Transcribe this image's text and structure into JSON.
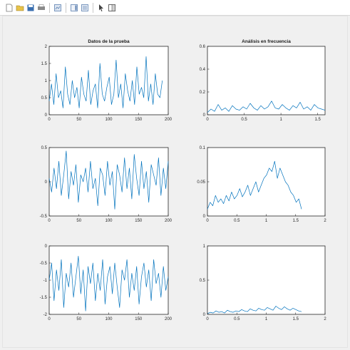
{
  "toolbar": {
    "buttons": [
      {
        "icon": "new-figure-icon",
        "color": "#ffffff"
      },
      {
        "icon": "open-file-icon",
        "color": "#e8c34a"
      },
      {
        "icon": "save-icon",
        "color": "#3a6fb0"
      },
      {
        "icon": "print-icon",
        "color": "#7a7a7a"
      },
      {
        "icon": "link-icon",
        "color": "#5a7fb0"
      },
      {
        "icon": "insert-colorbar-icon",
        "color": "#5a7fb0"
      },
      {
        "icon": "insert-legend-icon",
        "color": "#5a7fb0"
      },
      {
        "icon": "pointer-icon",
        "color": "#404040"
      },
      {
        "icon": "plot-tools-icon",
        "color": "#404040"
      }
    ]
  },
  "figure": {
    "trace_color": "#0072bd",
    "background": "#f0f0f0"
  },
  "chart_data": [
    {
      "type": "line",
      "title": "Datos de la prueba",
      "xlim": [
        0,
        200
      ],
      "ylim": [
        0,
        2
      ],
      "xticks": [
        0,
        50,
        100,
        150,
        200
      ],
      "yticks": [
        0,
        0.5,
        1,
        1.5,
        2
      ],
      "xtick_labels": [
        "0",
        "50",
        "100",
        "150",
        "200"
      ],
      "ytick_labels": [
        "0",
        "0.5",
        "1",
        "1.5",
        "2"
      ],
      "x_end": 190,
      "y": [
        0.4,
        0.9,
        0.3,
        1.2,
        0.5,
        0.7,
        0.2,
        1.4,
        0.6,
        0.3,
        1.0,
        0.5,
        0.8,
        0.2,
        1.1,
        0.6,
        0.4,
        1.3,
        0.3,
        0.7,
        0.9,
        0.2,
        1.5,
        0.6,
        0.4,
        0.8,
        1.1,
        0.3,
        0.6,
        1.6,
        0.5,
        0.9,
        0.2,
        1.2,
        0.7,
        0.4,
        1.0,
        0.3,
        1.4,
        0.6,
        0.8,
        0.5,
        1.7,
        0.4,
        0.9,
        0.3,
        1.2,
        0.6,
        0.5,
        1.0
      ]
    },
    {
      "type": "line",
      "title": "Análisis en frecuencia",
      "xlim": [
        0,
        1.6
      ],
      "ylim": [
        0,
        0.6
      ],
      "xticks": [
        0,
        0.5,
        1,
        1.5
      ],
      "yticks": [
        0,
        0.2,
        0.4,
        0.6
      ],
      "xtick_labels": [
        "0",
        "0.5",
        "1",
        "1.5"
      ],
      "ytick_labels": [
        "0",
        "0.2",
        "0.4",
        "0.6"
      ],
      "x_end": 1.6,
      "y": [
        0.02,
        0.05,
        0.03,
        0.09,
        0.04,
        0.06,
        0.03,
        0.08,
        0.05,
        0.04,
        0.07,
        0.05,
        0.1,
        0.06,
        0.04,
        0.08,
        0.05,
        0.07,
        0.12,
        0.06,
        0.05,
        0.09,
        0.06,
        0.04,
        0.08,
        0.06,
        0.11,
        0.05,
        0.07,
        0.04,
        0.09,
        0.06,
        0.05,
        0.04
      ]
    },
    {
      "type": "line",
      "title": "",
      "xlim": [
        0,
        200
      ],
      "ylim": [
        -0.5,
        0.5
      ],
      "xticks": [
        0,
        50,
        100,
        150,
        200
      ],
      "yticks": [
        -0.5,
        0,
        0.5
      ],
      "xtick_labels": [
        "0",
        "50",
        "100",
        "150",
        "200"
      ],
      "ytick_labels": [
        "-0.5",
        "0",
        "0.5"
      ],
      "x_end": 200,
      "y": [
        0.05,
        -0.15,
        0.2,
        -0.1,
        0.3,
        -0.2,
        0.1,
        0.45,
        -0.25,
        0.15,
        -0.05,
        0.25,
        -0.3,
        0.1,
        0.0,
        0.2,
        -0.15,
        0.3,
        -0.1,
        0.05,
        -0.35,
        0.2,
        0.1,
        -0.2,
        0.3,
        -0.05,
        0.15,
        -0.4,
        0.25,
        0.1,
        -0.15,
        0.35,
        -0.1,
        0.2,
        -0.25,
        0.4,
        0.05,
        -0.2,
        0.3,
        -0.1,
        0.15,
        -0.3,
        0.25,
        0.1,
        -0.05,
        0.35,
        -0.2,
        0.2,
        -0.1,
        0.3
      ]
    },
    {
      "type": "line",
      "title": "",
      "xlim": [
        0,
        2
      ],
      "ylim": [
        0,
        0.1
      ],
      "xticks": [
        0,
        0.5,
        1,
        1.5,
        2
      ],
      "yticks": [
        0,
        0.05,
        0.1
      ],
      "xtick_labels": [
        "0",
        "0.5",
        "1",
        "1.5",
        "2"
      ],
      "ytick_labels": [
        "0",
        "0.05",
        "0.1"
      ],
      "x_end": 1.6,
      "y": [
        0.01,
        0.02,
        0.015,
        0.03,
        0.02,
        0.025,
        0.018,
        0.03,
        0.022,
        0.035,
        0.025,
        0.03,
        0.04,
        0.028,
        0.035,
        0.045,
        0.03,
        0.04,
        0.05,
        0.035,
        0.045,
        0.055,
        0.06,
        0.07,
        0.065,
        0.08,
        0.055,
        0.07,
        0.06,
        0.05,
        0.045,
        0.035,
        0.03,
        0.02,
        0.025,
        0.01
      ]
    },
    {
      "type": "line",
      "title": "",
      "xlim": [
        0,
        200
      ],
      "ylim": [
        -2,
        0
      ],
      "xticks": [
        0,
        50,
        100,
        150,
        200
      ],
      "yticks": [
        -2,
        -1.5,
        -1,
        -0.5,
        0
      ],
      "xtick_labels": [
        "0",
        "50",
        "100",
        "150",
        "200"
      ],
      "ytick_labels": [
        "-2",
        "-1.5",
        "-1",
        "-0.5",
        "0"
      ],
      "x_end": 200,
      "y": [
        -1.0,
        -0.5,
        -1.6,
        -0.7,
        -1.3,
        -0.4,
        -1.8,
        -0.8,
        -1.2,
        -0.5,
        -1.5,
        -0.9,
        -0.3,
        -1.4,
        -0.7,
        -1.9,
        -0.6,
        -1.1,
        -0.5,
        -1.6,
        -0.8,
        -1.3,
        -0.4,
        -1.7,
        -0.9,
        -0.6,
        -1.4,
        -0.5,
        -1.2,
        -1.8,
        -0.7,
        -1.0,
        -0.4,
        -1.5,
        -0.8,
        -1.3,
        -0.6,
        -1.7,
        -0.9,
        -0.5,
        -1.2,
        -0.7,
        -1.6,
        -0.4,
        -1.1,
        -0.8,
        -1.5,
        -0.6,
        -1.3,
        -0.9
      ]
    },
    {
      "type": "line",
      "title": "",
      "xlim": [
        0,
        2
      ],
      "ylim": [
        0,
        1
      ],
      "xticks": [
        0,
        0.5,
        1,
        1.5,
        2
      ],
      "yticks": [
        0,
        0.5,
        1
      ],
      "xtick_labels": [
        "0",
        "0.5",
        "1",
        "1.5",
        "2"
      ],
      "ytick_labels": [
        "0",
        "0.5",
        "1"
      ],
      "x_end": 1.6,
      "y": [
        0.01,
        0.03,
        0.02,
        0.05,
        0.03,
        0.04,
        0.02,
        0.06,
        0.04,
        0.03,
        0.05,
        0.04,
        0.07,
        0.05,
        0.04,
        0.08,
        0.06,
        0.05,
        0.09,
        0.07,
        0.06,
        0.1,
        0.08,
        0.06,
        0.12,
        0.09,
        0.07,
        0.11,
        0.08,
        0.06,
        0.09,
        0.07,
        0.05,
        0.04
      ]
    }
  ]
}
